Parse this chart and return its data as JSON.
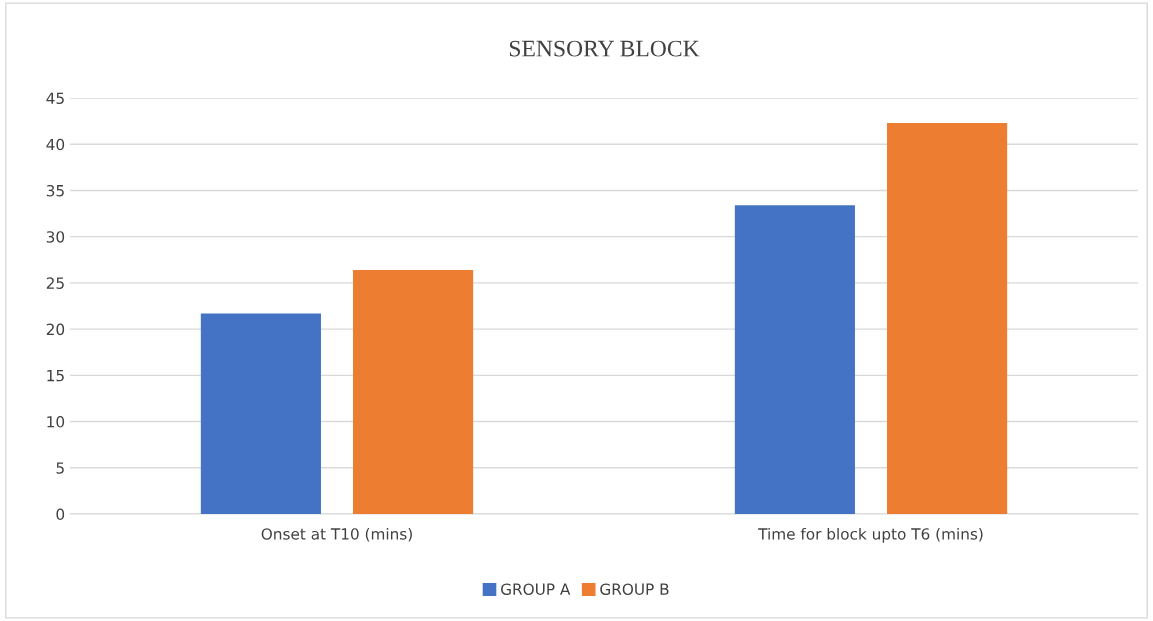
{
  "chart_data": {
    "type": "bar",
    "title": "SENSORY BLOCK",
    "categories": [
      "Onset at T10 (mins)",
      "Time for block upto T6 (mins)"
    ],
    "series": [
      {
        "name": "GROUP A",
        "color": "#4472c4",
        "values": [
          21.7,
          33.4
        ]
      },
      {
        "name": "GROUP B",
        "color": "#ed7d31",
        "values": [
          26.4,
          42.3
        ]
      }
    ],
    "ylim": [
      0,
      45
    ],
    "yticks": [
      0,
      5,
      10,
      15,
      20,
      25,
      30,
      35,
      40,
      45
    ],
    "grid": "y",
    "legend": "bottom"
  }
}
